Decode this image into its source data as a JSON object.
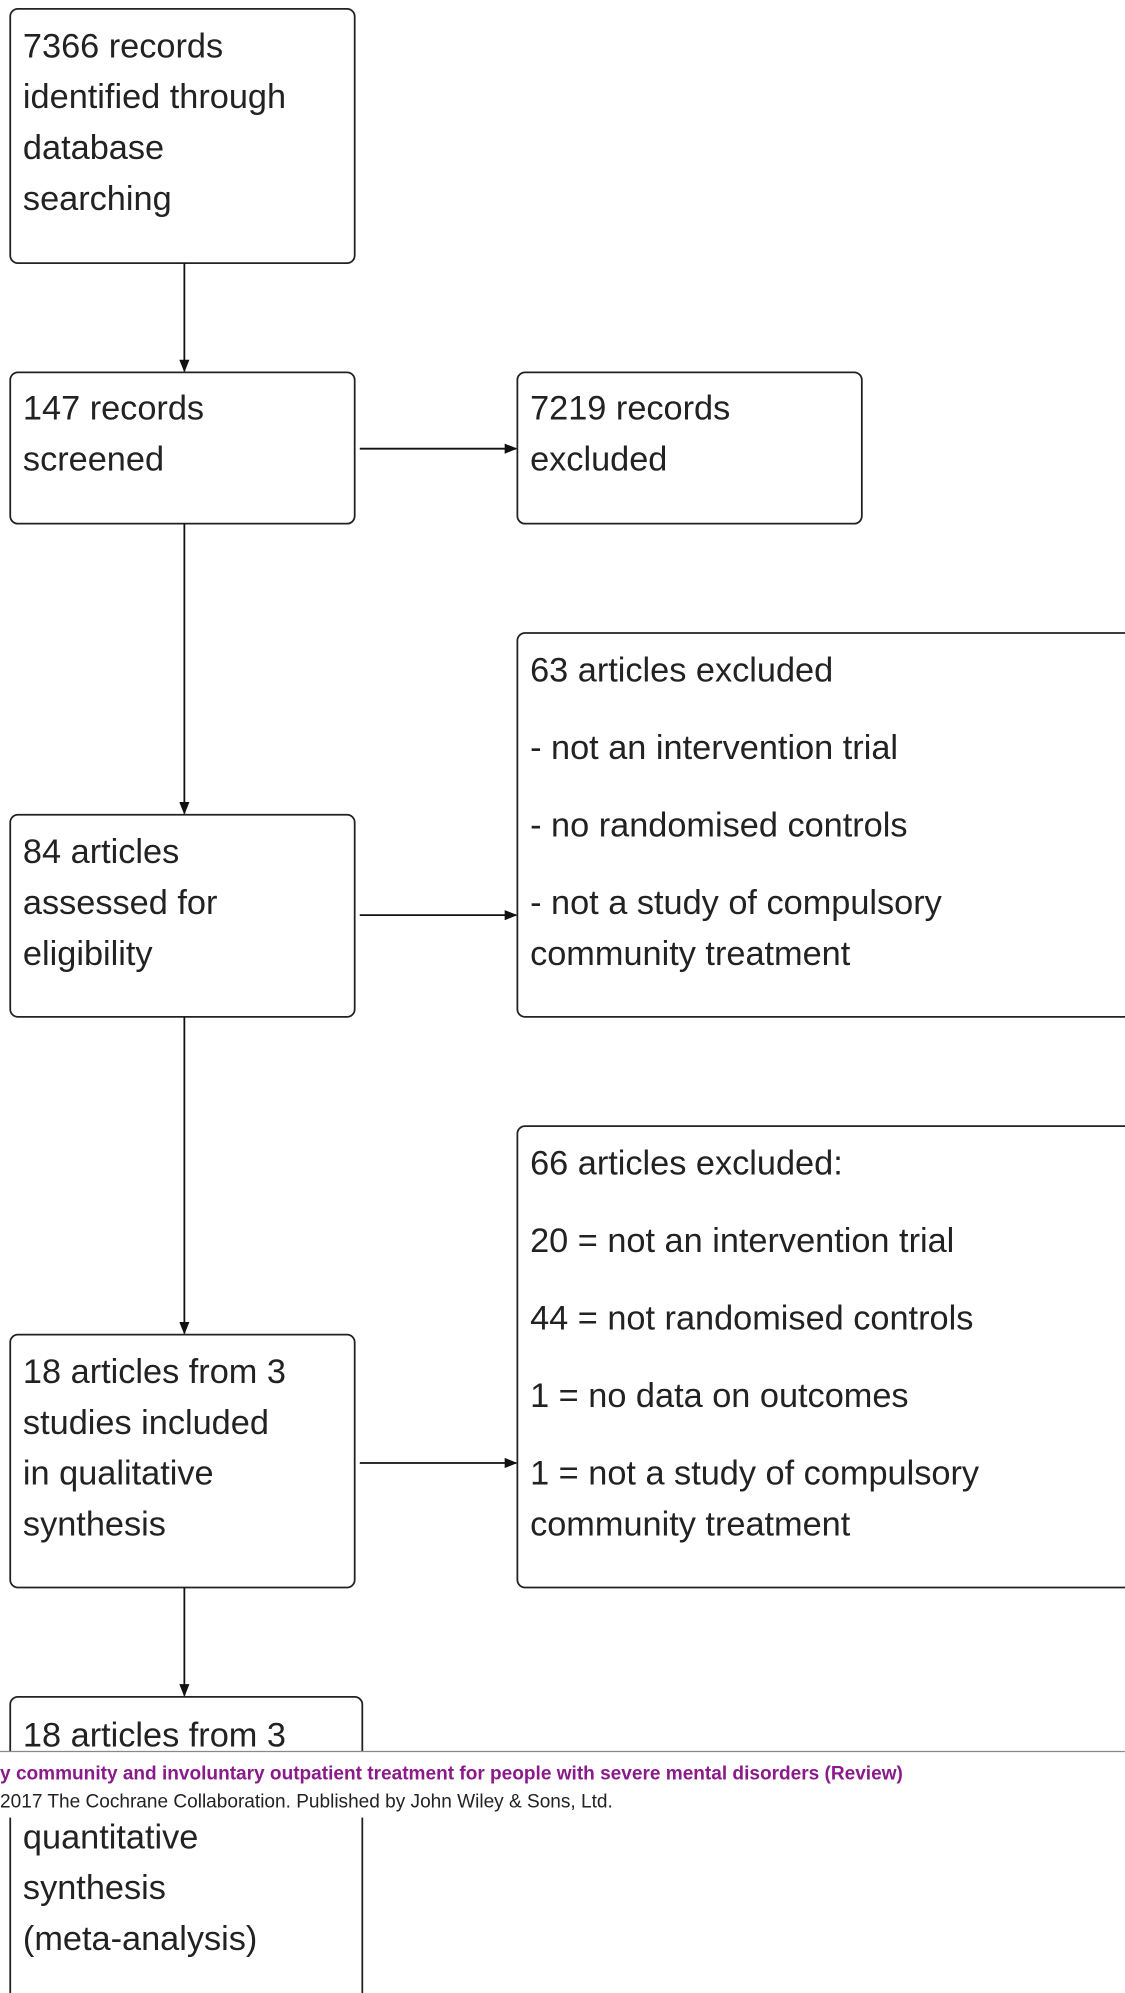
{
  "nodes": [
    {
      "lines": [
        "7366 records",
        "identified through",
        "database",
        "searching"
      ]
    },
    {
      "lines": [
        "147 records",
        "screened"
      ]
    },
    {
      "lines": [
        "7219 records",
        "excluded"
      ]
    },
    {
      "lines": [
        "63 articles excluded",
        "- not an intervention trial",
        "- no randomised controls",
        "- not a study of compulsory",
        "community treatment"
      ]
    },
    {
      "lines": [
        "84 articles",
        "assessed for",
        "eligibility"
      ]
    },
    {
      "lines": [
        "66 articles excluded:",
        "20 = not an intervention trial",
        "44 = not randomised controls",
        "1 = no data on outcomes",
        "1 = not a study of compulsory",
        "community treatment"
      ]
    },
    {
      "lines": [
        "18 articles from 3",
        "studies included",
        "in qualitative",
        "synthesis"
      ]
    },
    {
      "lines": [
        "18 articles from 3",
        "quantitative",
        "synthesis",
        "(meta-analysis)"
      ]
    }
  ],
  "footer": {
    "title": "y community and involuntary outpatient treatment for people with severe mental disorders (Review)",
    "copyright": "2017 The Cochrane Collaboration. Published by John Wiley & Sons, Ltd."
  }
}
